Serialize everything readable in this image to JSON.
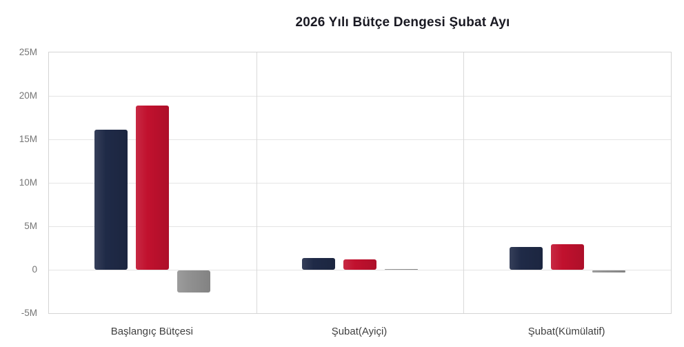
{
  "chart_data": {
    "type": "bar",
    "title": "2026 Yılı Bütçe Dengesi Şubat Ayı",
    "categories": [
      "Başlangıç Bütçesi",
      "Şubat(Ayiçi)",
      "Şubat(Kümülatif)"
    ],
    "series": [
      {
        "name": "navy",
        "color": "#1f2a47",
        "values": [
          16.1,
          1.35,
          2.65
        ]
      },
      {
        "name": "red",
        "color": "#c1112e",
        "values": [
          18.9,
          1.2,
          2.9
        ]
      },
      {
        "name": "gray",
        "color": "#919191",
        "values": [
          -2.55,
          0.05,
          -0.2
        ]
      }
    ],
    "unit": "M",
    "ylim": [
      -5,
      25
    ],
    "yticks": [
      {
        "label": "25M",
        "value": 25
      },
      {
        "label": "20M",
        "value": 20
      },
      {
        "label": "15M",
        "value": 15
      },
      {
        "label": "10M",
        "value": 10
      },
      {
        "label": "5M",
        "value": 5
      },
      {
        "label": "0",
        "value": 0
      },
      {
        "label": "-5M",
        "value": -5
      }
    ],
    "grid": true,
    "legend": "none"
  },
  "style_colors": {
    "title_text": "#191922",
    "tick_text": "#757575",
    "category_text": "#3f3f3f",
    "gridline": "#e4e4e4",
    "plot_border": "#d4d4d4",
    "background": "#ffffff"
  }
}
